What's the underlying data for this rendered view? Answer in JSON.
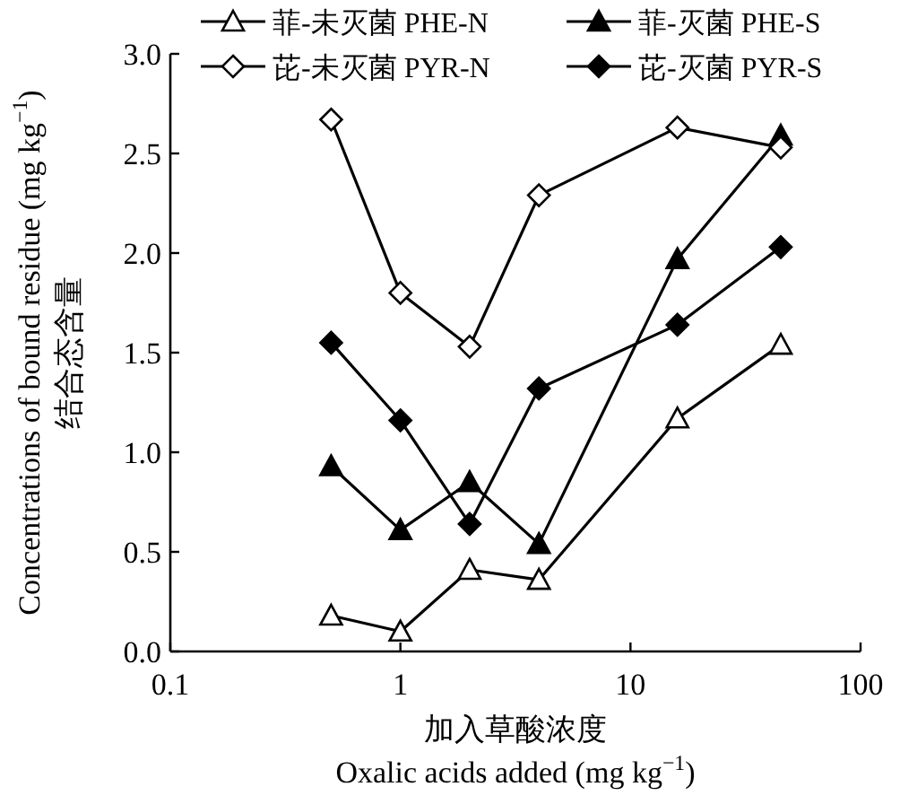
{
  "chart_data": {
    "type": "line",
    "log": "x",
    "legend": "top",
    "xlabel": "加入草酸浓度\nOxalic acids added (mg kg$^{−1}$)",
    "ylabel": "Concentrations of bound residue (mg kg$^{−1}$)\n结合态含量",
    "x": [
      0.5,
      1,
      2,
      4,
      16,
      45
    ],
    "xlim": [
      0.1,
      100
    ],
    "xticks": [
      0.1,
      1,
      10,
      100
    ],
    "ylim": [
      0,
      3
    ],
    "yticks": [
      {
        "value": 0,
        "label": "0.0"
      },
      0.5,
      {
        "value": 1,
        "label": "1.0"
      },
      1.5,
      {
        "value": 2,
        "label": "2.0"
      },
      2.5,
      {
        "value": 3,
        "label": "3.0"
      }
    ],
    "series": [
      {
        "name": "菲-未灭菌 PHE-N",
        "color": "#ffffff",
        "marker": "triangle",
        "values": [
          0.18,
          0.1,
          0.41,
          0.36,
          1.17,
          1.54
        ]
      },
      {
        "name": "菲-灭菌 PHE-S",
        "color": "#000000",
        "marker": "triangle",
        "values": [
          0.93,
          0.61,
          0.85,
          0.54,
          1.97,
          2.59
        ]
      },
      {
        "name": "芘-未灭菌 PYR-N",
        "color": "#ffffff",
        "marker": "diamond",
        "values": [
          2.67,
          1.8,
          1.53,
          2.29,
          2.63,
          2.53
        ]
      },
      {
        "name": "芘-灭菌 PYR-S",
        "color": "#000000",
        "marker": "diamond",
        "values": [
          1.55,
          1.16,
          0.64,
          1.32,
          1.64,
          2.03
        ]
      }
    ]
  }
}
